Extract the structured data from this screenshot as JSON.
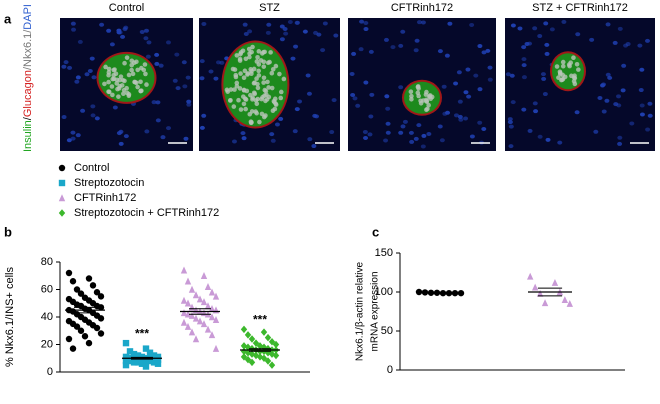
{
  "panel_a": {
    "label": "a",
    "columns": [
      "Control",
      "STZ",
      "CFTRinh172",
      "STZ + CFTRinh172"
    ],
    "stain_label": [
      {
        "text": "Insulin",
        "color": "#1fa51f"
      },
      {
        "text": "/",
        "color": "#000000"
      },
      {
        "text": "Glucagon",
        "color": "#d41f1f"
      },
      {
        "text": "/Nkx6.1/",
        "color": "#777777"
      },
      {
        "text": "DAPI",
        "color": "#2f5fcf"
      }
    ]
  },
  "chart_data": [
    {
      "type": "dotplot",
      "label": "b",
      "ylabel": "% Nkx6.1/INS+ cells",
      "ylim": [
        0,
        80
      ],
      "yticks": [
        0,
        20,
        40,
        60,
        80
      ],
      "legend": "top-left",
      "series": [
        {
          "name": "Control",
          "color": "#000000",
          "marker": "circle",
          "mean": 45,
          "sem": 2,
          "values": [
            72,
            68,
            66,
            63,
            60,
            58,
            57,
            55,
            54,
            53,
            52,
            51,
            50,
            49,
            48,
            48,
            47,
            46,
            45,
            45,
            44,
            43,
            42,
            41,
            40,
            39,
            38,
            37,
            36,
            35,
            34,
            33,
            32,
            30,
            28,
            26,
            24,
            21,
            17
          ]
        },
        {
          "name": "Streptozotocin",
          "color": "#1aa7c9",
          "marker": "square",
          "mean": 10,
          "sem": 0.6,
          "annotation": "***",
          "values": [
            21,
            17,
            15,
            14,
            13,
            12,
            12,
            11,
            11,
            11,
            10,
            10,
            10,
            10,
            9,
            9,
            9,
            9,
            8,
            8,
            8,
            8,
            7,
            7,
            7,
            6,
            6,
            5,
            4
          ]
        },
        {
          "name": "CFTRinh172",
          "color": "#c99ad6",
          "marker": "triangle",
          "mean": 44,
          "sem": 2,
          "values": [
            74,
            70,
            66,
            62,
            60,
            58,
            56,
            55,
            53,
            52,
            51,
            50,
            48,
            47,
            46,
            45,
            45,
            44,
            43,
            43,
            42,
            42,
            41,
            40,
            39,
            38,
            37,
            36,
            35,
            33,
            31,
            29,
            27,
            24,
            17
          ]
        },
        {
          "name": "Streptozotocin + CFTRinh172",
          "color": "#3cb82c",
          "marker": "diamond",
          "mean": 16,
          "sem": 0.9,
          "annotation": "***",
          "values": [
            31,
            29,
            27,
            25,
            24,
            22,
            21,
            20,
            19,
            19,
            18,
            18,
            17,
            17,
            16,
            16,
            16,
            15,
            15,
            15,
            14,
            14,
            13,
            13,
            12,
            12,
            11,
            11,
            10,
            9,
            8,
            7,
            5
          ]
        }
      ]
    },
    {
      "type": "dotplot",
      "label": "c",
      "ylabel": [
        "Nkx6.1/β-actin relative",
        "mRNA expression"
      ],
      "ylim": [
        0,
        150
      ],
      "yticks": [
        0,
        50,
        100,
        150
      ],
      "series": [
        {
          "color": "#000000",
          "marker": "circle",
          "mean": 99,
          "sem": 0.3,
          "values": [
            100,
            99.5,
            99,
            99,
            98.5,
            98.5,
            98.5,
            98.5
          ]
        },
        {
          "color": "#c99ad6",
          "marker": "triangle",
          "mean": 100,
          "sem": 5,
          "values": [
            120,
            112,
            106,
            100,
            98,
            90,
            86,
            85
          ]
        }
      ]
    }
  ]
}
